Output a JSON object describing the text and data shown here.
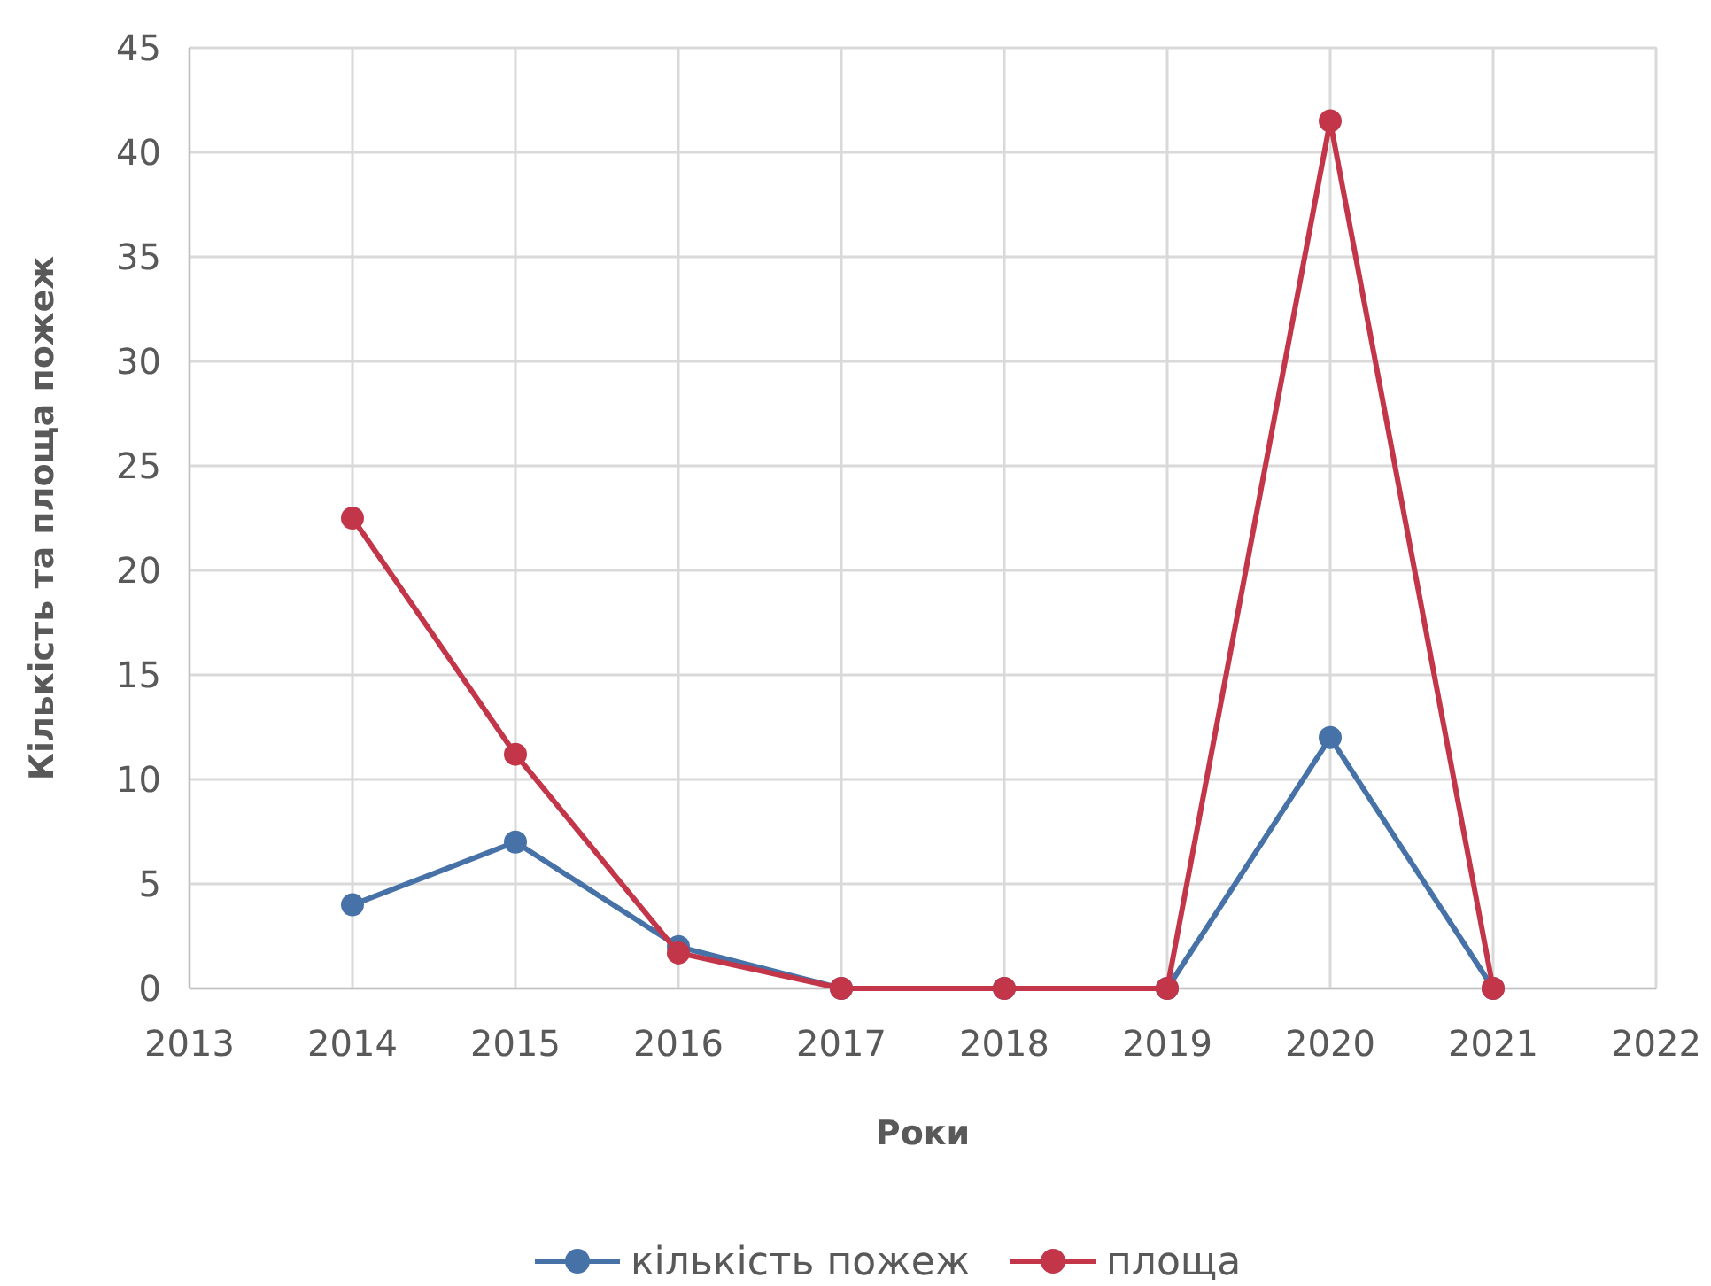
{
  "chart_data": {
    "type": "line",
    "xlabel": "Роки",
    "ylabel": "Кількість та площа пожеж",
    "x": [
      2014,
      2015,
      2016,
      2017,
      2018,
      2019,
      2020,
      2021
    ],
    "series": [
      {
        "name": "кількість пожеж",
        "color": "#4672a8",
        "values": [
          4,
          7,
          2,
          0,
          0,
          0,
          12,
          0
        ]
      },
      {
        "name": "площа",
        "color": "#c3364a",
        "values": [
          22.5,
          11.2,
          1.7,
          0,
          0,
          0,
          41.5,
          0
        ]
      }
    ],
    "xlim": [
      2013,
      2022
    ],
    "xticks": [
      2013,
      2014,
      2015,
      2016,
      2017,
      2018,
      2019,
      2020,
      2021,
      2022
    ],
    "ylim": [
      0,
      45
    ],
    "yticks": [
      0,
      5,
      10,
      15,
      20,
      25,
      30,
      35,
      40,
      45
    ],
    "grid": true,
    "legend": "bottom",
    "marker": "circle",
    "line_style": "solid"
  }
}
